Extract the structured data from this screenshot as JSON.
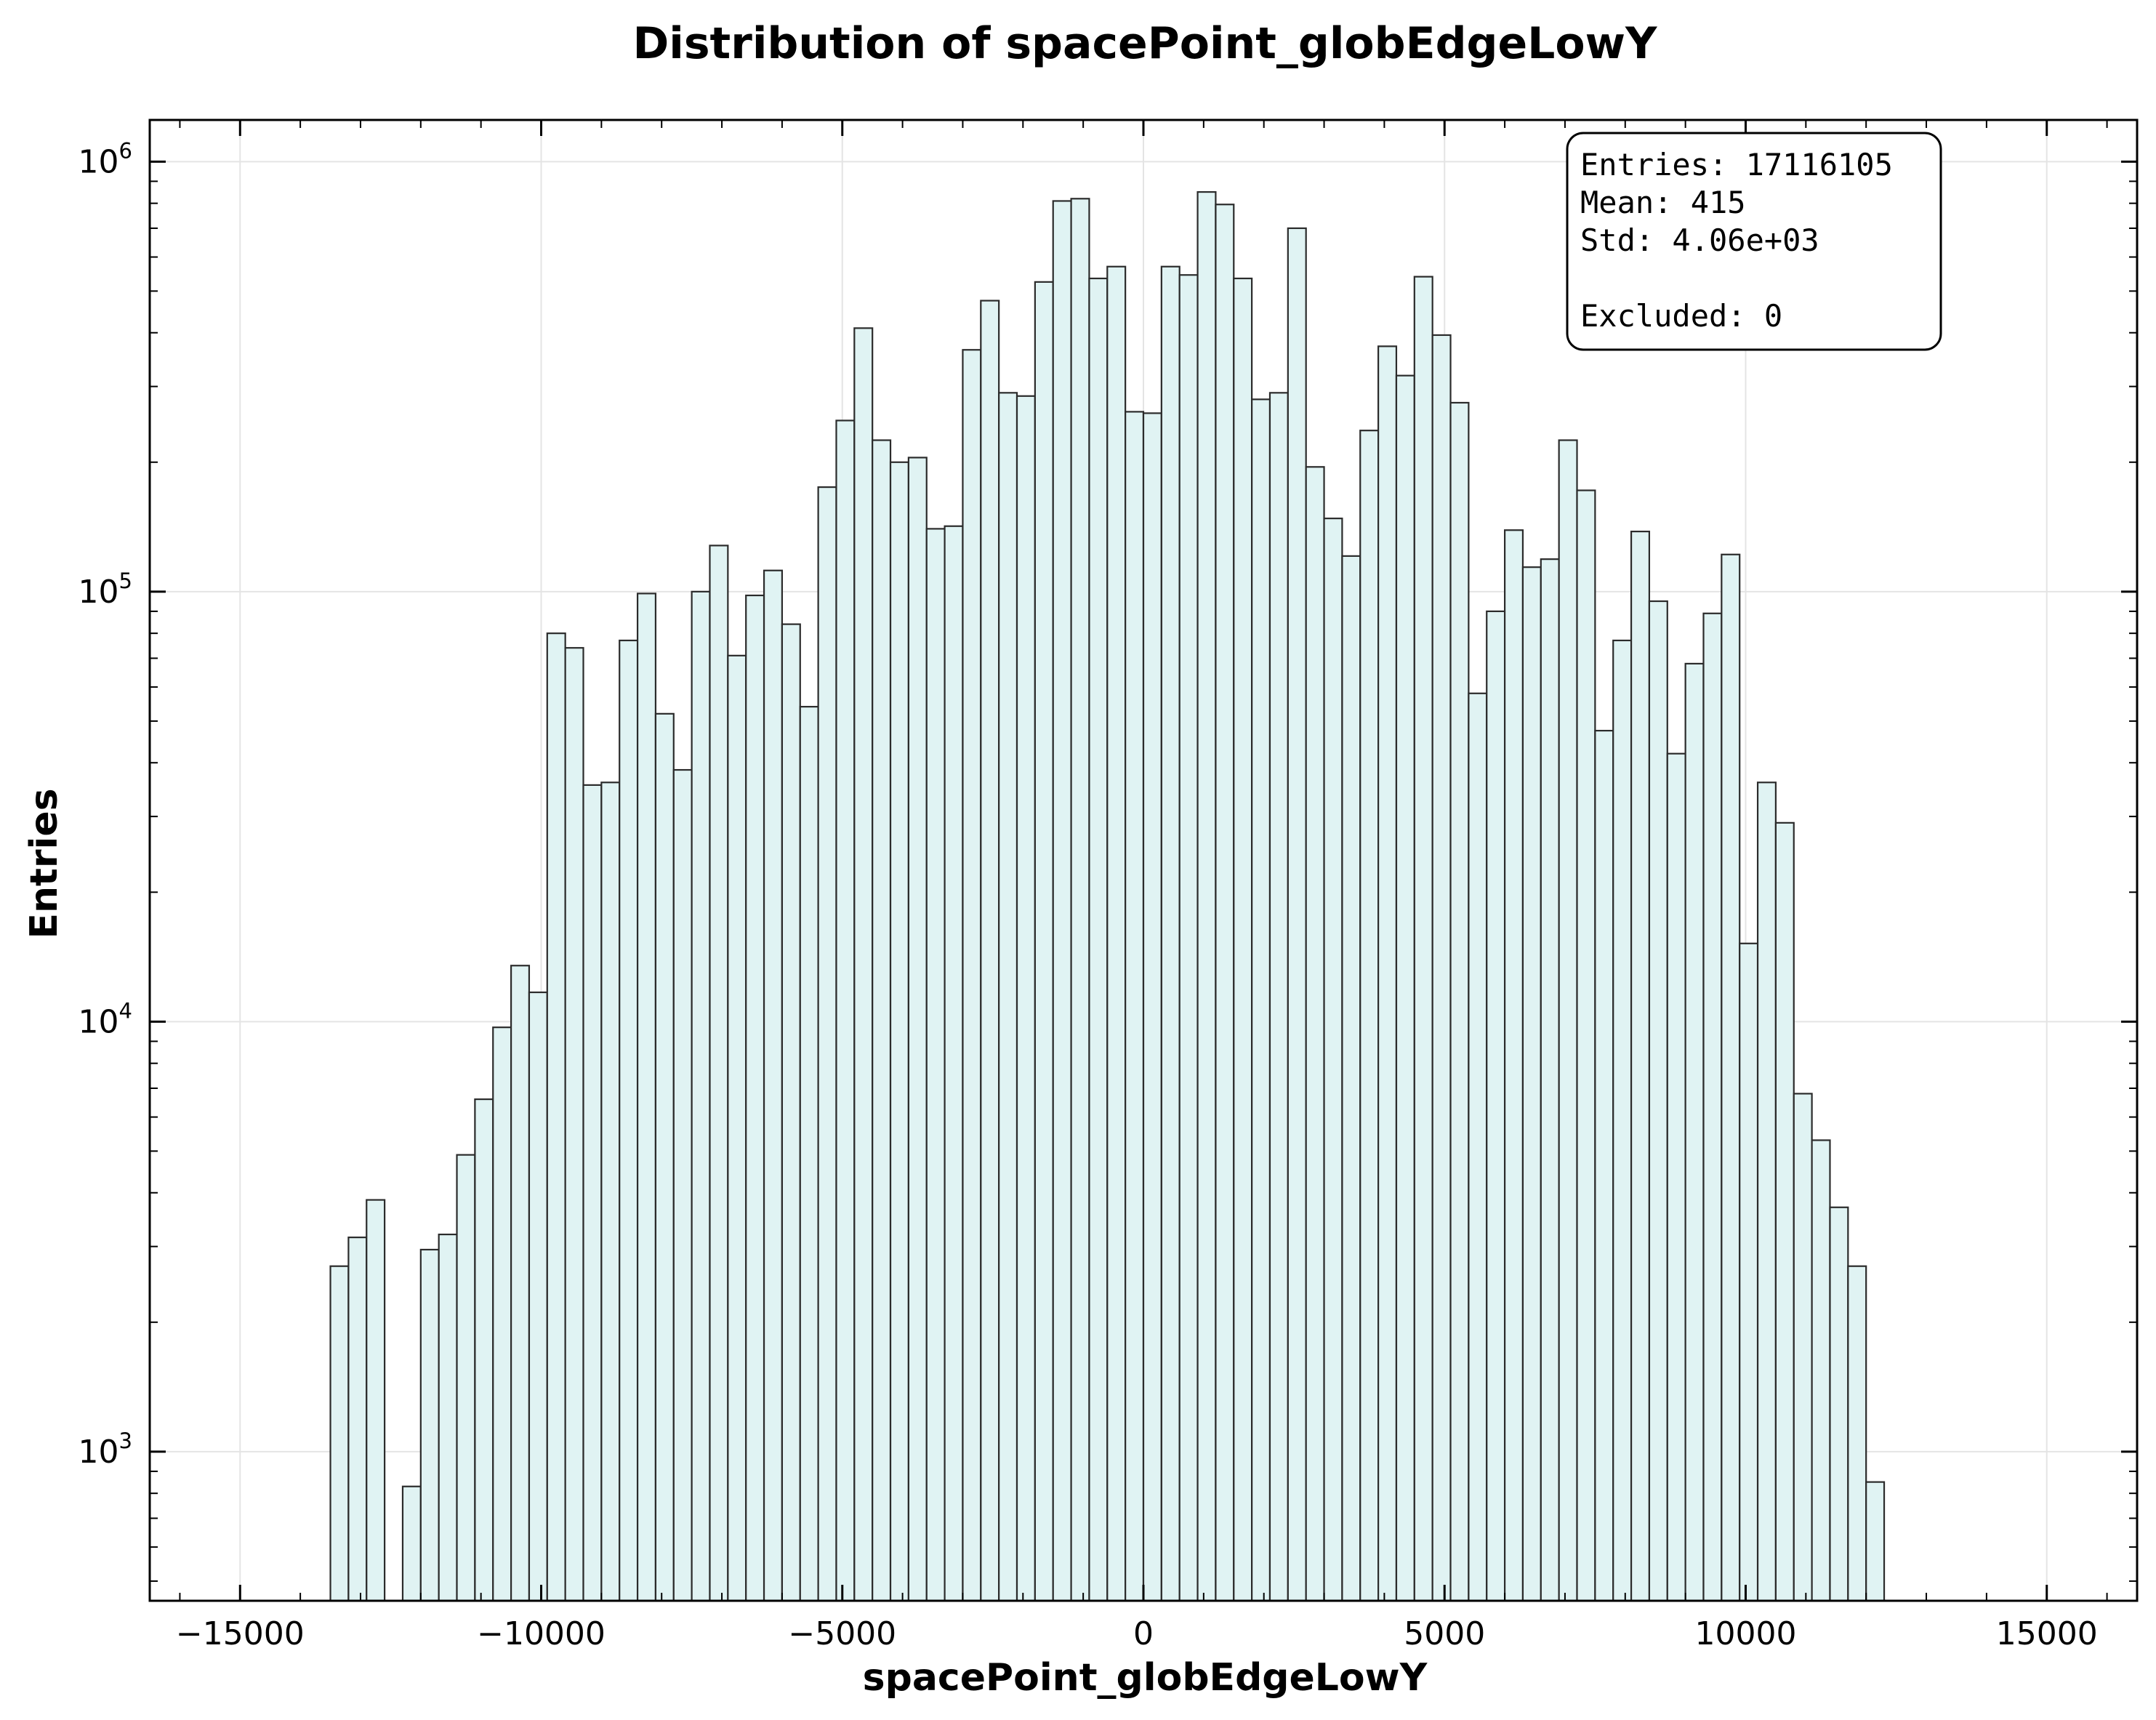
{
  "chart_data": {
    "type": "bar",
    "title": "Distribution of spacePoint_globEdgeLowY",
    "xlabel": "spacePoint_globEdgeLowY",
    "ylabel": "Entries",
    "xlim": [
      -16500,
      16500
    ],
    "ylim": [
      450,
      1250000
    ],
    "yscale": "log",
    "grid": true,
    "bar_fill": "#e0f3f3",
    "bar_edge": "#2b2b2b",
    "x_ticks": [
      {
        "value": -15000,
        "label": "−15000"
      },
      {
        "value": -10000,
        "label": "−10000"
      },
      {
        "value": -5000,
        "label": "−5000"
      },
      {
        "value": 0,
        "label": "0"
      },
      {
        "value": 5000,
        "label": "5000"
      },
      {
        "value": 10000,
        "label": "10000"
      },
      {
        "value": 15000,
        "label": "15000"
      }
    ],
    "y_ticks": [
      {
        "value": 1000,
        "base": "10",
        "exp": "3"
      },
      {
        "value": 10000,
        "base": "10",
        "exp": "4"
      },
      {
        "value": 100000,
        "base": "10",
        "exp": "5"
      },
      {
        "value": 1000000,
        "base": "10",
        "exp": "6"
      }
    ],
    "bin_edges_start": -13500,
    "bin_width": 300,
    "values": [
      2700,
      3150,
      3850,
      0,
      830,
      2950,
      3200,
      4900,
      6600,
      9700,
      13500,
      11700,
      80000,
      74000,
      35500,
      36000,
      77000,
      99000,
      52000,
      38500,
      100000,
      128000,
      71000,
      98000,
      112000,
      84000,
      54000,
      175000,
      250000,
      410000,
      225000,
      200000,
      205000,
      140000,
      142000,
      365000,
      475000,
      290000,
      285000,
      525000,
      810000,
      820000,
      535000,
      570000,
      262000,
      260000,
      570000,
      545000,
      850000,
      795000,
      535000,
      280000,
      290000,
      700000,
      195000,
      148000,
      121000,
      237000,
      372000,
      318000,
      540000,
      395000,
      275000,
      58000,
      90000,
      139000,
      114000,
      119000,
      225000,
      172000,
      47500,
      77000,
      138000,
      95000,
      42000,
      68000,
      89000,
      122000,
      15200,
      36000,
      29000,
      6800,
      5300,
      3700,
      2700,
      850
    ],
    "stats": {
      "lines": [
        "Entries: 17116105",
        "Mean: 415",
        "Std: 4.06e+03",
        "",
        "Excluded: 0"
      ]
    }
  }
}
